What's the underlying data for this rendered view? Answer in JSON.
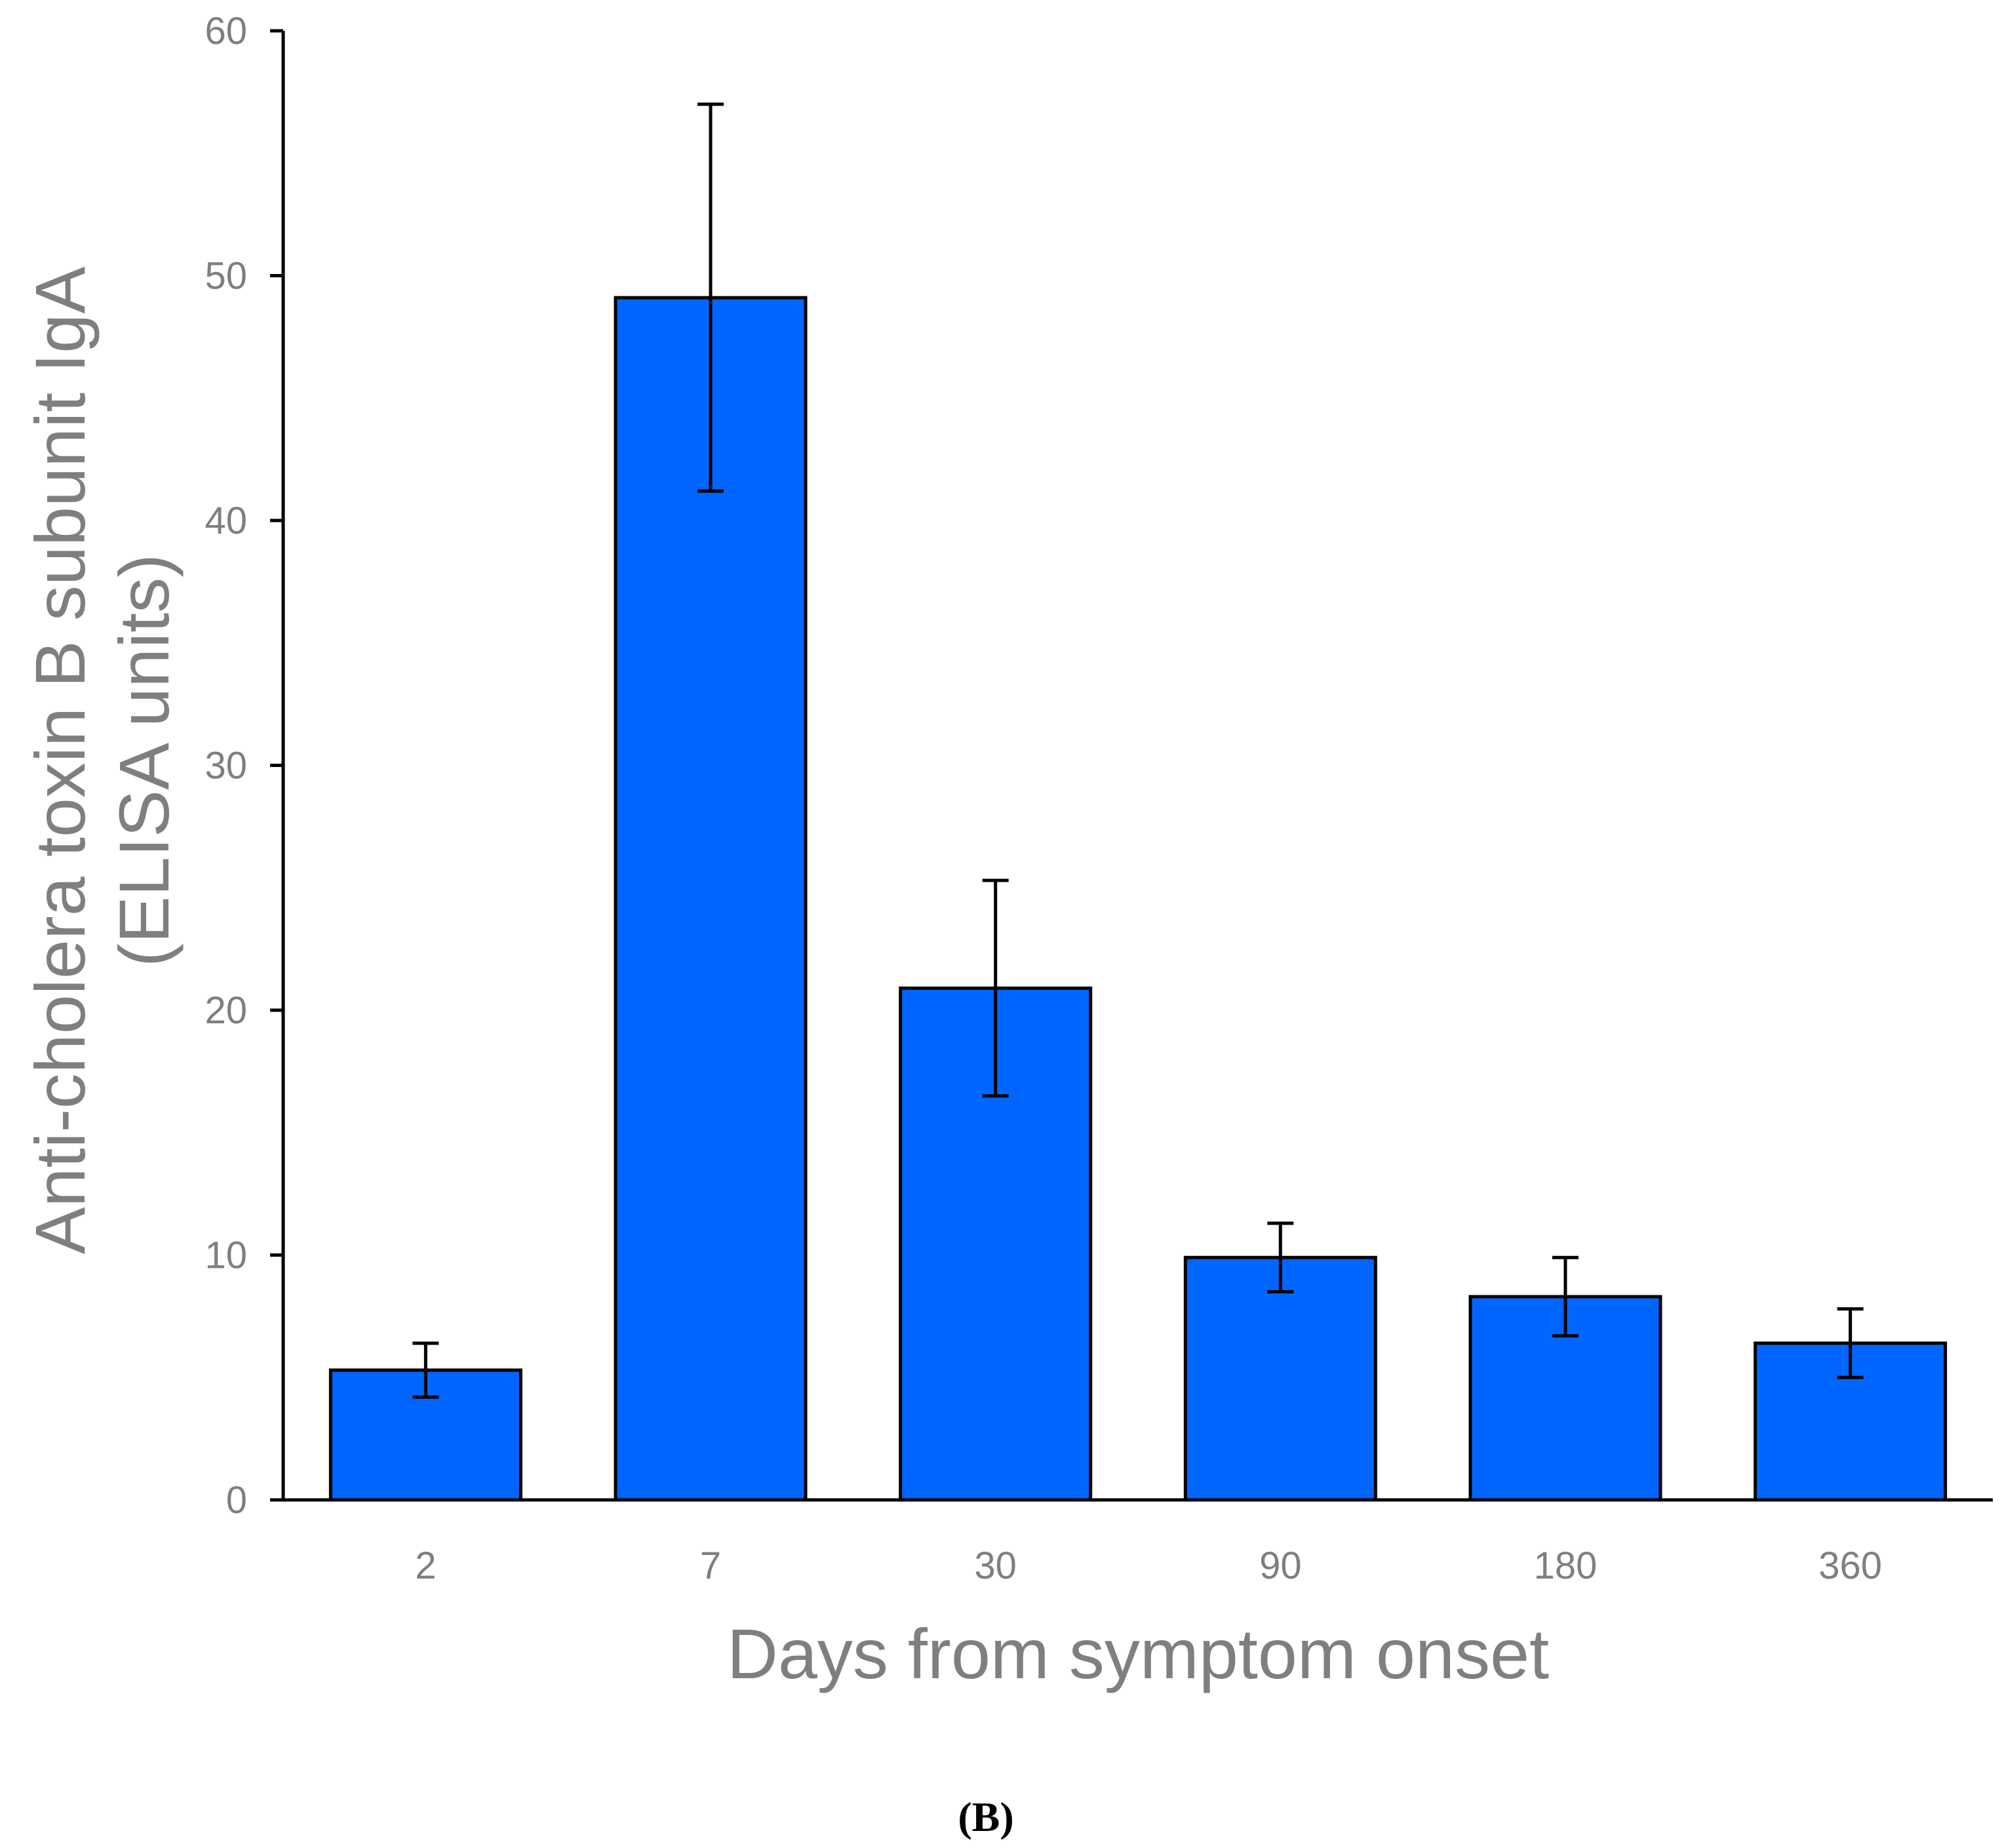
{
  "chart_data": {
    "type": "bar",
    "title": "",
    "categories": [
      "2",
      "7",
      "30",
      "90",
      "180",
      "360"
    ],
    "values": [
      5.3,
      49.1,
      20.9,
      9.9,
      8.3,
      6.4
    ],
    "error_low": [
      4.2,
      41.2,
      16.5,
      8.5,
      6.7,
      5.0
    ],
    "error_high": [
      6.4,
      57.0,
      25.3,
      11.3,
      9.9,
      7.8
    ],
    "xlabel": "Days from symptom onset",
    "ylabel_lines": [
      "Anti-cholera toxin B subunit IgA",
      "(ELISA units)"
    ],
    "ylim": [
      0,
      60
    ],
    "yticks": [
      "0",
      "10",
      "20",
      "30",
      "40",
      "50",
      "60"
    ],
    "grid": false,
    "legend": "none",
    "bar_color": "#0066ff",
    "panel_label": "(B)"
  }
}
